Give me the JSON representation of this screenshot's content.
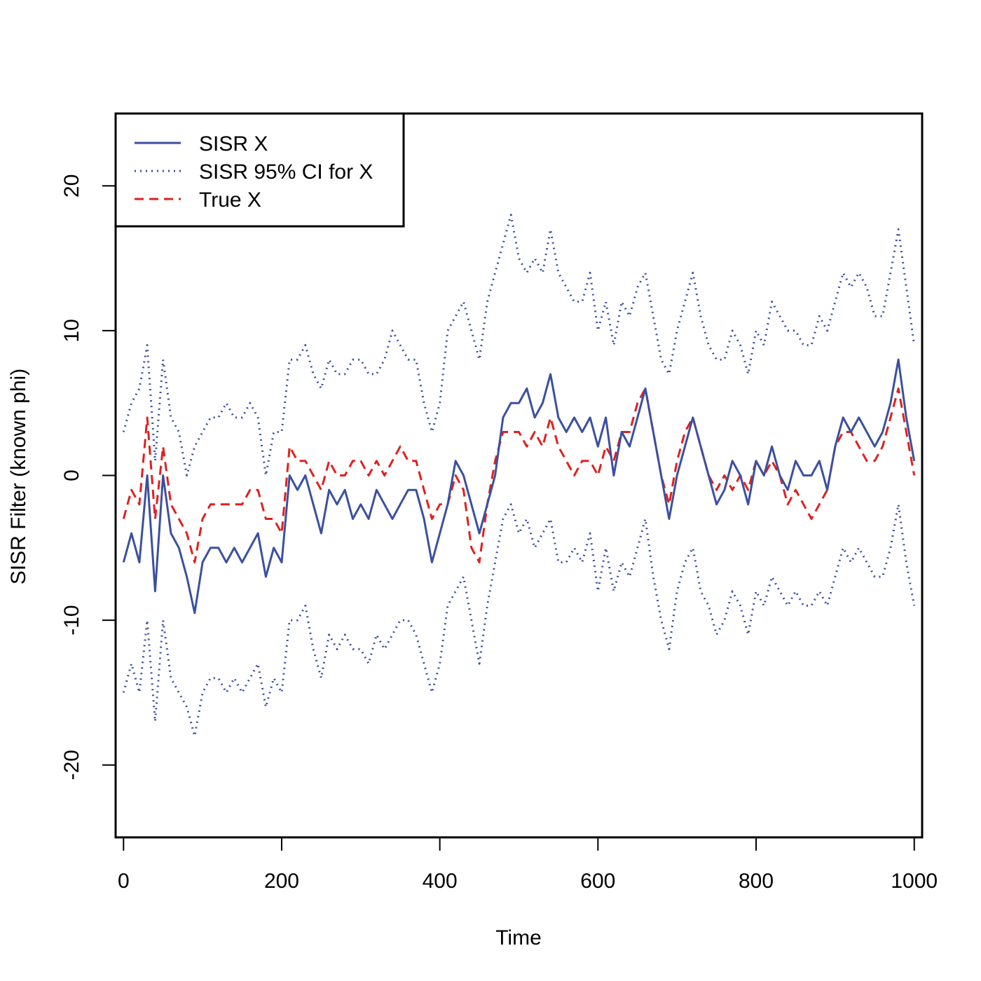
{
  "chart_data": {
    "type": "line",
    "title": "",
    "xlabel": "Time",
    "ylabel": "SISR Filter (known phi)",
    "xlim": [
      -10,
      1010
    ],
    "ylim": [
      -25,
      25
    ],
    "x_ticks": [
      0,
      200,
      400,
      600,
      800,
      1000
    ],
    "y_ticks": [
      -20,
      -10,
      0,
      10,
      20
    ],
    "legend": {
      "position": "top-left",
      "entries": [
        {
          "label": "SISR X",
          "style": "solid",
          "color": "#3b50a0"
        },
        {
          "label": "SISR 95% CI for X",
          "style": "dotted",
          "color": "#3b50a0"
        },
        {
          "label": "True X",
          "style": "dashed",
          "color": "#e02020"
        }
      ]
    },
    "x": [
      0,
      10,
      20,
      30,
      40,
      50,
      60,
      70,
      80,
      90,
      100,
      110,
      120,
      130,
      140,
      150,
      160,
      170,
      180,
      190,
      200,
      210,
      220,
      230,
      240,
      250,
      260,
      270,
      280,
      290,
      300,
      310,
      320,
      330,
      340,
      350,
      360,
      370,
      380,
      390,
      400,
      410,
      420,
      430,
      440,
      450,
      460,
      470,
      480,
      490,
      500,
      510,
      520,
      530,
      540,
      550,
      560,
      570,
      580,
      590,
      600,
      610,
      620,
      630,
      640,
      650,
      660,
      670,
      680,
      690,
      700,
      710,
      720,
      730,
      740,
      750,
      760,
      770,
      780,
      790,
      800,
      810,
      820,
      830,
      840,
      850,
      860,
      870,
      880,
      890,
      900,
      910,
      920,
      930,
      940,
      950,
      960,
      970,
      980,
      990,
      1000
    ],
    "series": [
      {
        "name": "SISR X",
        "style": "solid",
        "color": "#3b50a0",
        "values": [
          -6,
          -4,
          -6,
          0,
          -8,
          0,
          -4,
          -5,
          -7,
          -9.5,
          -6,
          -5,
          -5,
          -6,
          -5,
          -6,
          -5,
          -4,
          -7,
          -5,
          -6,
          0,
          -1,
          0,
          -2,
          -4,
          -1,
          -2,
          -1,
          -3,
          -2,
          -3,
          -1,
          -2,
          -3,
          -2,
          -1,
          -1,
          -3,
          -6,
          -4,
          -2,
          1,
          0,
          -2,
          -4,
          -2,
          0,
          4,
          5,
          5,
          6,
          4,
          5,
          7,
          4,
          3,
          4,
          3,
          4,
          2,
          4,
          0,
          3,
          2,
          4,
          6,
          3,
          0,
          -3,
          0,
          2,
          4,
          2,
          0,
          -2,
          -1,
          1,
          0,
          -2,
          1,
          0,
          2,
          0,
          -1,
          1,
          0,
          0,
          1,
          -1,
          2,
          4,
          3,
          4,
          3,
          2,
          3,
          5,
          8,
          4,
          1
        ]
      },
      {
        "name": "SISR 95% CI for X (upper)",
        "style": "dotted",
        "color": "#3b50a0",
        "values": [
          3,
          5,
          6,
          9,
          1,
          8,
          4,
          3,
          0,
          2,
          3,
          4,
          4,
          5,
          4,
          4,
          5,
          4,
          0,
          3,
          3,
          8,
          8,
          9,
          7,
          6,
          8,
          7,
          7,
          8,
          8,
          7,
          7,
          8,
          10,
          9,
          8,
          8,
          5,
          3,
          5,
          10,
          11,
          12,
          10,
          8,
          12,
          14,
          16,
          18,
          15,
          14,
          15,
          14,
          17,
          14,
          13,
          12,
          12,
          14,
          10,
          12,
          9,
          12,
          11,
          13,
          14,
          11,
          8,
          7,
          10,
          12,
          14,
          11,
          9,
          8,
          8,
          10,
          9,
          7,
          10,
          9,
          12,
          11,
          10,
          10,
          9,
          9,
          11,
          10,
          12,
          14,
          13,
          14,
          13,
          11,
          11,
          14,
          17,
          13,
          9
        ]
      },
      {
        "name": "SISR 95% CI for X (lower)",
        "style": "dotted",
        "color": "#3b50a0",
        "values": [
          -15,
          -13,
          -15,
          -10,
          -17,
          -10,
          -14,
          -15,
          -16,
          -18,
          -15,
          -14,
          -14,
          -15,
          -14,
          -15,
          -14,
          -13,
          -16,
          -14,
          -15,
          -10,
          -10,
          -9,
          -12,
          -14,
          -11,
          -12,
          -11,
          -12,
          -12,
          -13,
          -11,
          -12,
          -11,
          -10,
          -10,
          -11,
          -13,
          -15,
          -13,
          -9,
          -8,
          -7,
          -10,
          -13,
          -9,
          -6,
          -3,
          -2,
          -4,
          -3,
          -5,
          -4,
          -3,
          -6,
          -6,
          -5,
          -6,
          -4,
          -8,
          -5,
          -8,
          -6,
          -7,
          -5,
          -3,
          -7,
          -10,
          -12,
          -8,
          -6,
          -5,
          -8,
          -9,
          -11,
          -10,
          -8,
          -9,
          -11,
          -8,
          -9,
          -7,
          -8,
          -9,
          -8,
          -9,
          -9,
          -8,
          -9,
          -7,
          -5,
          -6,
          -5,
          -6,
          -7,
          -7,
          -5,
          -2,
          -6,
          -9
        ]
      },
      {
        "name": "True X",
        "style": "dashed",
        "color": "#e02020",
        "values": [
          -3,
          -1,
          -2,
          4,
          -3,
          2,
          -2,
          -3,
          -4,
          -6,
          -3,
          -2,
          -2,
          -2,
          -2,
          -2,
          -1,
          -1,
          -3,
          -3,
          -4,
          2,
          1,
          1,
          0,
          -1,
          1,
          0,
          0,
          1,
          1,
          0,
          1,
          0,
          1,
          2,
          1,
          1,
          -1,
          -3,
          -2,
          -2,
          0,
          -1,
          -5,
          -6,
          -2,
          1,
          3,
          3,
          3,
          2,
          3,
          2,
          4,
          2,
          1,
          0,
          1,
          1,
          0,
          2,
          1,
          3,
          3,
          5,
          6,
          3,
          0,
          -2,
          1,
          3,
          4,
          2,
          0,
          -1,
          0,
          -1,
          0,
          -1,
          1,
          0,
          1,
          0,
          -2,
          -1,
          -2,
          -3,
          -2,
          -1,
          2,
          3,
          3,
          2,
          1,
          1,
          2,
          4,
          6,
          3,
          0
        ]
      }
    ]
  }
}
